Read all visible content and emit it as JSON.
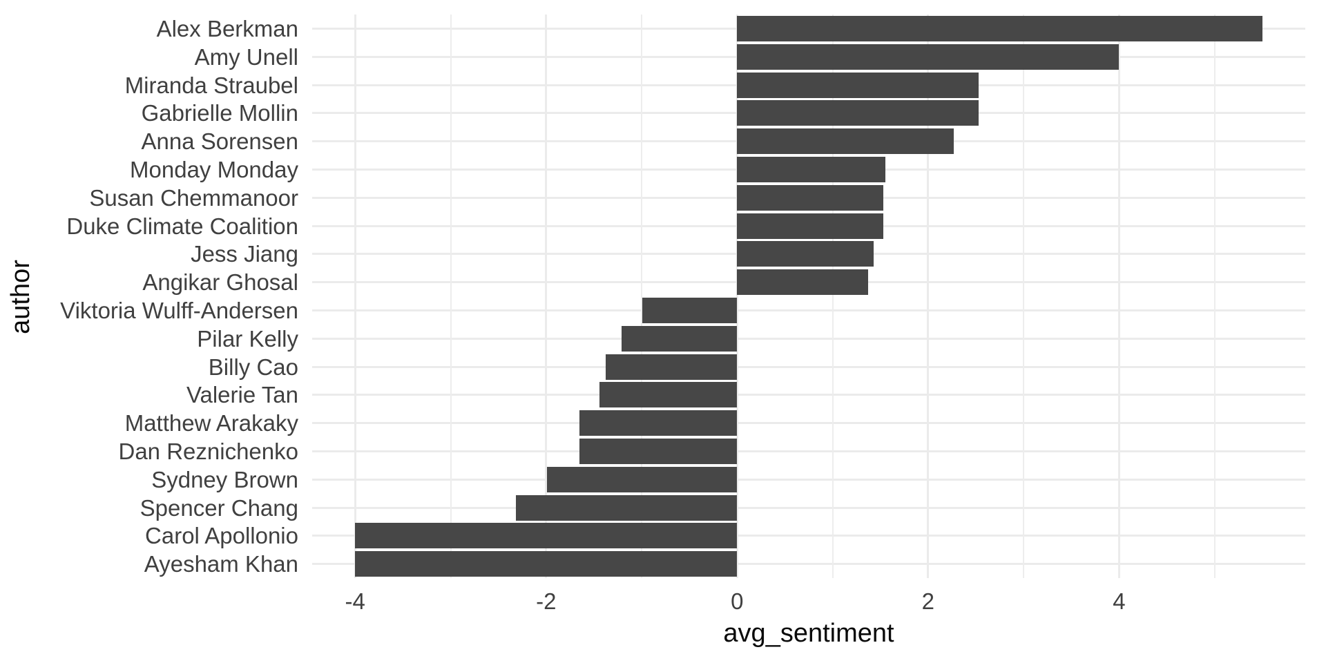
{
  "chart_data": {
    "type": "bar",
    "orientation": "horizontal",
    "title": "",
    "xlabel": "avg_sentiment",
    "ylabel": "author",
    "categories": [
      "Alex Berkman",
      "Amy Unell",
      "Miranda Straubel",
      "Gabrielle Mollin",
      "Anna Sorensen",
      "Monday Monday",
      "Susan Chemmanoor",
      "Duke Climate Coalition",
      "Jess Jiang",
      "Angikar Ghosal",
      "Viktoria Wulff-Andersen",
      "Pilar Kelly",
      "Billy Cao",
      "Valerie Tan",
      "Matthew Arakaky",
      "Dan Reznichenko",
      "Sydney Brown",
      "Spencer Chang",
      "Carol Apollonio",
      "Ayesham Khan"
    ],
    "values": [
      5.5,
      4.0,
      2.53,
      2.53,
      2.27,
      1.55,
      1.53,
      1.53,
      1.43,
      1.37,
      -0.99,
      -1.21,
      -1.38,
      -1.44,
      -1.65,
      -1.65,
      -1.99,
      -2.32,
      -4.0,
      -4.0
    ],
    "x_ticks": [
      -4,
      -2,
      0,
      2,
      4
    ],
    "x_tick_labels": [
      "-4",
      "-2",
      "0",
      "2",
      "4"
    ],
    "x_minor_ticks": [
      -3,
      -1,
      1,
      3,
      5
    ],
    "xlim": [
      -4.45,
      5.95
    ],
    "grid": "on",
    "legend": "none",
    "bar_color": "#474747",
    "gridline_color": "#EBEBEB",
    "axis_text_color": "#404040",
    "axis_title_color": "#0a0a0a",
    "background_color": "#ffffff"
  }
}
